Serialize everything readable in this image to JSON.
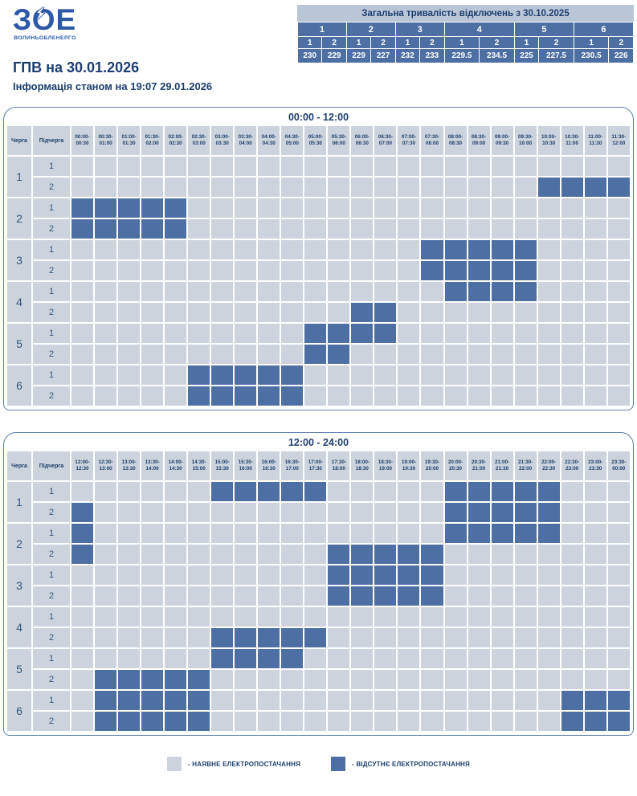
{
  "header": {
    "logo_text": "ЗОЕ",
    "logo_subtext": "ВОЛИНЬОБЛЕНЕРГО",
    "title": "ГПВ на 30.01.2026",
    "subtitle": "Інформація станом на 19:07 29.01.2026"
  },
  "totals_table": {
    "title": "Загальна тривалість відключень з 30.10.2025",
    "queue_headers": [
      "1",
      "2",
      "3",
      "4",
      "5",
      "6"
    ],
    "subqueue_headers": [
      "1",
      "2",
      "1",
      "2",
      "1",
      "2",
      "1",
      "2",
      "1",
      "2",
      "1",
      "2"
    ],
    "values": [
      "230",
      "229",
      "229",
      "227",
      "232",
      "233",
      "229.5",
      "234.5",
      "225",
      "227.5",
      "230.5",
      "226"
    ]
  },
  "schedule": {
    "col1_header": "Черга",
    "col2_header": "Підчерга",
    "tables": [
      {
        "title": "00:00 - 12:00",
        "slots": [
          "00:00-00:30",
          "00:30-01:00",
          "01:00-01:30",
          "01:30-02:00",
          "02:00-02:30",
          "02:30-03:00",
          "03:00-03:30",
          "03:30-04:00",
          "04:00-04:30",
          "04:30-05:00",
          "05:00-05:30",
          "05:30-06:00",
          "06:00-06:30",
          "06:30-07:00",
          "07:00-07:30",
          "07:30-08:00",
          "08:00-08:30",
          "08:30-09:00",
          "09:00-09:30",
          "09:30-10:00",
          "10:00-10:30",
          "10:30-11:00",
          "11:00-11:30",
          "11:30-12:00"
        ],
        "queues": [
          {
            "queue": "1",
            "rows": [
              {
                "sub": "1"
              },
              {
                "sub": "2"
              }
            ]
          },
          {
            "queue": "2",
            "rows": [
              {
                "sub": "1"
              },
              {
                "sub": "2"
              }
            ]
          },
          {
            "queue": "3",
            "rows": [
              {
                "sub": "1"
              },
              {
                "sub": "2"
              }
            ]
          },
          {
            "queue": "4",
            "rows": [
              {
                "sub": "1"
              },
              {
                "sub": "2"
              }
            ]
          },
          {
            "queue": "5",
            "rows": [
              {
                "sub": "1"
              },
              {
                "sub": "2"
              }
            ]
          },
          {
            "queue": "6",
            "rows": [
              {
                "sub": "1"
              },
              {
                "sub": "2"
              }
            ]
          }
        ]
      },
      {
        "title": "12:00 - 24:00",
        "slots": [
          "12:00-12:30",
          "12:30-13:00",
          "13:00-13:30",
          "13:30-14:00",
          "14:00-14:30",
          "14:30-15:00",
          "15:00-15:30",
          "15:30-16:00",
          "16:00-16:30",
          "16:30-17:00",
          "17:00-17:30",
          "17:30-18:00",
          "18:00-18:30",
          "18:30-19:00",
          "19:00-19:30",
          "19:30-20:00",
          "20:00-20:30",
          "20:30-21:00",
          "21:00-21:30",
          "21:30-22:00",
          "22:00-22:30",
          "22:30-23:00",
          "23:00-23:30",
          "23:30-00:00"
        ],
        "queues": [
          {
            "queue": "1",
            "rows": [
              {
                "sub": "1"
              },
              {
                "sub": "2"
              }
            ]
          },
          {
            "queue": "2",
            "rows": [
              {
                "sub": "1"
              },
              {
                "sub": "2"
              }
            ]
          },
          {
            "queue": "3",
            "rows": [
              {
                "sub": "1"
              },
              {
                "sub": "2"
              }
            ]
          },
          {
            "queue": "4",
            "rows": [
              {
                "sub": "1"
              },
              {
                "sub": "2"
              }
            ]
          },
          {
            "queue": "5",
            "rows": [
              {
                "sub": "1"
              },
              {
                "sub": "2"
              }
            ]
          },
          {
            "queue": "6",
            "rows": [
              {
                "sub": "1"
              },
              {
                "sub": "2"
              }
            ]
          }
        ]
      }
    ]
  },
  "legend": {
    "items": [
      {
        "label": "- НАЯВНЕ ЕЛЕКТРОПОСТАЧАННЯ",
        "type": "available"
      },
      {
        "label": "- ВІДСУТНЄ ЕЛЕКТРОПОСТАЧАННЯ",
        "type": "outage"
      }
    ]
  },
  "colors": {
    "available": "#ccd3dc",
    "outage": "#4d6fa3",
    "panel": "#b8c6d8",
    "navy": "#1c3e6e",
    "logo": "#2d59a8"
  },
  "chart_data": [
    {
      "type": "heatmap",
      "title": "00:00 - 12:00",
      "x_labels": [
        "00:00-00:30",
        "00:30-01:00",
        "01:00-01:30",
        "01:30-02:00",
        "02:00-02:30",
        "02:30-03:00",
        "03:00-03:30",
        "03:30-04:00",
        "04:00-04:30",
        "04:30-05:00",
        "05:00-05:30",
        "05:30-06:00",
        "06:00-06:30",
        "06:30-07:00",
        "07:00-07:30",
        "07:30-08:00",
        "08:00-08:30",
        "08:30-09:00",
        "09:00-09:30",
        "09:30-10:00",
        "10:00-10:30",
        "10:30-11:00",
        "11:00-11:30",
        "11:30-12:00"
      ],
      "y_labels": [
        "1.1",
        "1.2",
        "2.1",
        "2.2",
        "3.1",
        "3.2",
        "4.1",
        "4.2",
        "5.1",
        "5.2",
        "6.1",
        "6.2"
      ],
      "value_legend": {
        "0": "наявне електропостачання",
        "1": "відсутнє електропостачання"
      },
      "matrix": [
        [
          0,
          0,
          0,
          0,
          0,
          0,
          0,
          0,
          0,
          0,
          0,
          0,
          0,
          0,
          0,
          0,
          0,
          0,
          0,
          0,
          0,
          0,
          0,
          0
        ],
        [
          0,
          0,
          0,
          0,
          0,
          0,
          0,
          0,
          0,
          0,
          0,
          0,
          0,
          0,
          0,
          0,
          0,
          0,
          0,
          0,
          1,
          1,
          1,
          1
        ],
        [
          1,
          1,
          1,
          1,
          1,
          0,
          0,
          0,
          0,
          0,
          0,
          0,
          0,
          0,
          0,
          0,
          0,
          0,
          0,
          0,
          0,
          0,
          0,
          0
        ],
        [
          1,
          1,
          1,
          1,
          1,
          0,
          0,
          0,
          0,
          0,
          0,
          0,
          0,
          0,
          0,
          0,
          0,
          0,
          0,
          0,
          0,
          0,
          0,
          0
        ],
        [
          0,
          0,
          0,
          0,
          0,
          0,
          0,
          0,
          0,
          0,
          0,
          0,
          0,
          0,
          0,
          1,
          1,
          1,
          1,
          1,
          0,
          0,
          0,
          0
        ],
        [
          0,
          0,
          0,
          0,
          0,
          0,
          0,
          0,
          0,
          0,
          0,
          0,
          0,
          0,
          0,
          1,
          1,
          1,
          1,
          1,
          0,
          0,
          0,
          0
        ],
        [
          0,
          0,
          0,
          0,
          0,
          0,
          0,
          0,
          0,
          0,
          0,
          0,
          0,
          0,
          0,
          0,
          1,
          1,
          1,
          1,
          0,
          0,
          0,
          0
        ],
        [
          0,
          0,
          0,
          0,
          0,
          0,
          0,
          0,
          0,
          0,
          0,
          0,
          1,
          1,
          0,
          0,
          0,
          0,
          0,
          0,
          0,
          0,
          0,
          0
        ],
        [
          0,
          0,
          0,
          0,
          0,
          0,
          0,
          0,
          0,
          0,
          1,
          1,
          1,
          1,
          0,
          0,
          0,
          0,
          0,
          0,
          0,
          0,
          0,
          0
        ],
        [
          0,
          0,
          0,
          0,
          0,
          0,
          0,
          0,
          0,
          0,
          1,
          1,
          0,
          0,
          0,
          0,
          0,
          0,
          0,
          0,
          0,
          0,
          0,
          0
        ],
        [
          0,
          0,
          0,
          0,
          0,
          1,
          1,
          1,
          1,
          1,
          0,
          0,
          0,
          0,
          0,
          0,
          0,
          0,
          0,
          0,
          0,
          0,
          0,
          0
        ],
        [
          0,
          0,
          0,
          0,
          0,
          1,
          1,
          1,
          1,
          1,
          0,
          0,
          0,
          0,
          0,
          0,
          0,
          0,
          0,
          0,
          0,
          0,
          0,
          0
        ]
      ]
    },
    {
      "type": "heatmap",
      "title": "12:00 - 24:00",
      "x_labels": [
        "12:00-12:30",
        "12:30-13:00",
        "13:00-13:30",
        "13:30-14:00",
        "14:00-14:30",
        "14:30-15:00",
        "15:00-15:30",
        "15:30-16:00",
        "16:00-16:30",
        "16:30-17:00",
        "17:00-17:30",
        "17:30-18:00",
        "18:00-18:30",
        "18:30-19:00",
        "19:00-19:30",
        "19:30-20:00",
        "20:00-20:30",
        "20:30-21:00",
        "21:00-21:30",
        "21:30-22:00",
        "22:00-22:30",
        "22:30-23:00",
        "23:00-23:30",
        "23:30-00:00"
      ],
      "y_labels": [
        "1.1",
        "1.2",
        "2.1",
        "2.2",
        "3.1",
        "3.2",
        "4.1",
        "4.2",
        "5.1",
        "5.2",
        "6.1",
        "6.2"
      ],
      "value_legend": {
        "0": "наявне електропостачання",
        "1": "відсутнє електропостачання"
      },
      "matrix": [
        [
          0,
          0,
          0,
          0,
          0,
          0,
          1,
          1,
          1,
          1,
          1,
          0,
          0,
          0,
          0,
          0,
          1,
          1,
          1,
          1,
          1,
          0,
          0,
          0
        ],
        [
          1,
          0,
          0,
          0,
          0,
          0,
          0,
          0,
          0,
          0,
          0,
          0,
          0,
          0,
          0,
          0,
          1,
          1,
          1,
          1,
          1,
          0,
          0,
          0
        ],
        [
          1,
          0,
          0,
          0,
          0,
          0,
          0,
          0,
          0,
          0,
          0,
          0,
          0,
          0,
          0,
          0,
          1,
          1,
          1,
          1,
          1,
          0,
          0,
          0
        ],
        [
          1,
          0,
          0,
          0,
          0,
          0,
          0,
          0,
          0,
          0,
          0,
          1,
          1,
          1,
          1,
          1,
          0,
          0,
          0,
          0,
          0,
          0,
          0,
          0
        ],
        [
          0,
          0,
          0,
          0,
          0,
          0,
          0,
          0,
          0,
          0,
          0,
          1,
          1,
          1,
          1,
          1,
          0,
          0,
          0,
          0,
          0,
          0,
          0,
          0
        ],
        [
          0,
          0,
          0,
          0,
          0,
          0,
          0,
          0,
          0,
          0,
          0,
          1,
          1,
          1,
          1,
          1,
          0,
          0,
          0,
          0,
          0,
          0,
          0,
          0
        ],
        [
          0,
          0,
          0,
          0,
          0,
          0,
          0,
          0,
          0,
          0,
          0,
          0,
          0,
          0,
          0,
          0,
          0,
          0,
          0,
          0,
          0,
          0,
          0,
          0
        ],
        [
          0,
          0,
          0,
          0,
          0,
          0,
          1,
          1,
          1,
          1,
          1,
          0,
          0,
          0,
          0,
          0,
          0,
          0,
          0,
          0,
          0,
          0,
          0,
          0
        ],
        [
          0,
          0,
          0,
          0,
          0,
          0,
          1,
          1,
          1,
          1,
          0,
          0,
          0,
          0,
          0,
          0,
          0,
          0,
          0,
          0,
          0,
          0,
          0,
          0
        ],
        [
          0,
          1,
          1,
          1,
          1,
          1,
          0,
          0,
          0,
          0,
          0,
          0,
          0,
          0,
          0,
          0,
          0,
          0,
          0,
          0,
          0,
          0,
          0,
          0
        ],
        [
          0,
          1,
          1,
          1,
          1,
          1,
          0,
          0,
          0,
          0,
          0,
          0,
          0,
          0,
          0,
          0,
          0,
          0,
          0,
          0,
          0,
          1,
          1,
          1
        ],
        [
          0,
          1,
          1,
          1,
          1,
          1,
          0,
          0,
          0,
          0,
          0,
          0,
          0,
          0,
          0,
          0,
          0,
          0,
          0,
          0,
          0,
          1,
          1,
          1
        ]
      ]
    }
  ]
}
